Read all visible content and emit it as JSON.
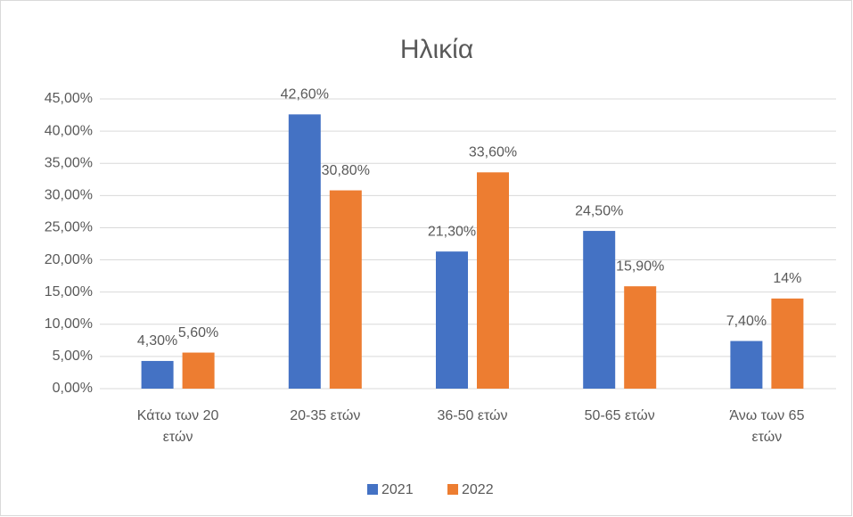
{
  "chart_data": {
    "type": "bar",
    "title": "Ηλικία",
    "categories": [
      "Κάτω των 20 ετών",
      "20-35 ετών",
      "36-50 ετών",
      "50-65 ετών",
      "Άνω των 65 ετών"
    ],
    "series": [
      {
        "name": "2021",
        "color": "#4472c4",
        "values": [
          4.3,
          42.6,
          21.3,
          24.5,
          7.4
        ],
        "value_labels": [
          "4,30%",
          "42,60%",
          "21,30%",
          "24,50%",
          "7,40%"
        ]
      },
      {
        "name": "2022",
        "color": "#ed7d31",
        "values": [
          5.6,
          30.8,
          33.6,
          15.9,
          14
        ],
        "value_labels": [
          "5,60%",
          "30,80%",
          "33,60%",
          "15,90%",
          "14%"
        ]
      }
    ],
    "ylim": [
      0,
      45
    ],
    "yticks": [
      {
        "value": 0,
        "label": "0,00%"
      },
      {
        "value": 5,
        "label": "5,00%"
      },
      {
        "value": 10,
        "label": "10,00%"
      },
      {
        "value": 15,
        "label": "15,00%"
      },
      {
        "value": 20,
        "label": "20,00%"
      },
      {
        "value": 25,
        "label": "25,00%"
      },
      {
        "value": 30,
        "label": "30,00%"
      },
      {
        "value": 35,
        "label": "35,00%"
      },
      {
        "value": 40,
        "label": "40,00%"
      },
      {
        "value": 45,
        "label": "45,00%"
      }
    ],
    "grid": true,
    "legend": "bottom"
  }
}
